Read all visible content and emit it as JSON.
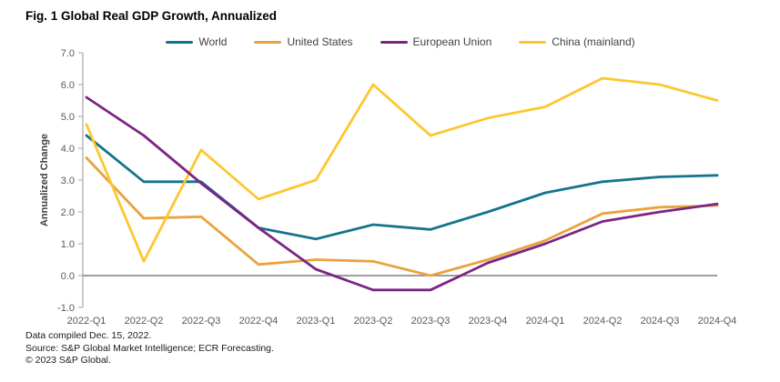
{
  "header": {
    "title": "Fig. 1 Global Real GDP Growth, Annualized"
  },
  "footer": {
    "line1": "Data compiled Dec. 15, 2022.",
    "line2": "Source: S&P Global Market Intelligence;  ECR Forecasting.",
    "line3": "© 2023 S&P Global."
  },
  "chart_data": {
    "type": "line",
    "title": "Fig. 1 Global Real GDP Growth, Annualized",
    "xlabel": "",
    "ylabel": "Annualized  Change",
    "ylim": [
      -1.0,
      7.0
    ],
    "y_tick_labels": [
      "7.0",
      "6.0",
      "5.0",
      "4.0",
      "3.0",
      "2.0",
      "1.0",
      "0.0",
      "-1.0"
    ],
    "grid": false,
    "zero_line": true,
    "legend_position": "top-center",
    "categories": [
      "2022-Q1",
      "2022-Q2",
      "2022-Q3",
      "2022-Q4",
      "2023-Q1",
      "2023-Q2",
      "2023-Q3",
      "2023-Q4",
      "2024-Q1",
      "2024-Q2",
      "2024-Q3",
      "2024-Q4"
    ],
    "series": [
      {
        "name": "World",
        "color": "#15748c",
        "values": [
          4.4,
          2.95,
          2.95,
          1.5,
          1.15,
          1.6,
          1.45,
          2.0,
          2.6,
          2.95,
          3.1,
          3.15
        ]
      },
      {
        "name": "United States",
        "color": "#eaa23e",
        "values": [
          3.7,
          1.8,
          1.85,
          0.35,
          0.5,
          0.45,
          0.0,
          0.5,
          1.1,
          1.95,
          2.15,
          2.2
        ]
      },
      {
        "name": "European Union",
        "color": "#7c2483",
        "values": [
          5.6,
          4.4,
          2.9,
          1.5,
          0.2,
          -0.45,
          -0.45,
          0.4,
          1.0,
          1.7,
          2.0,
          2.25
        ]
      },
      {
        "name": "China (mainland)",
        "color": "#fdc72f",
        "values": [
          4.75,
          0.45,
          3.95,
          2.4,
          3.0,
          6.0,
          4.4,
          4.95,
          5.3,
          6.2,
          6.0,
          5.5
        ]
      }
    ],
    "draw_order": [
      0,
      1,
      3,
      2
    ],
    "axis_color": "#a6a6a6",
    "zero_line_color": "#7f7f7f",
    "tick_text_color": "#595959",
    "ylabel_color": "#404040"
  }
}
